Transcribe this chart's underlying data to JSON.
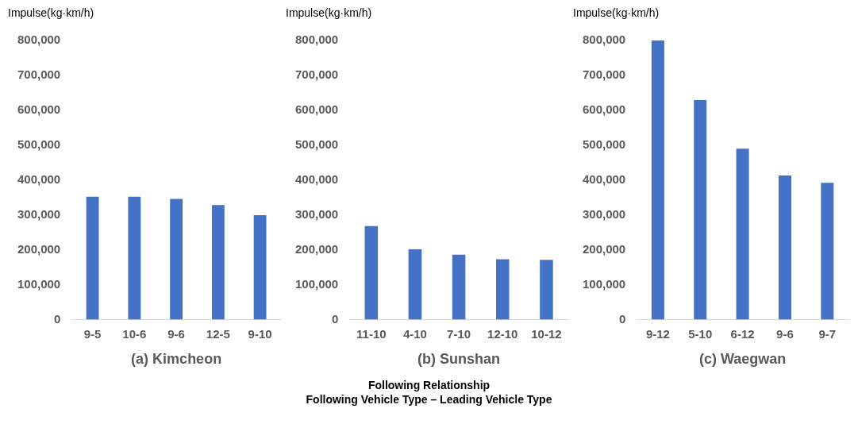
{
  "chart_data": [
    {
      "type": "bar",
      "xlabel": "(a) Kimcheon",
      "ylabel": "Impulse(kg·km/h)",
      "categories": [
        "9-5",
        "10-6",
        "9-6",
        "12-5",
        "9-10"
      ],
      "values": [
        352000,
        352000,
        346000,
        328000,
        299000
      ],
      "color": "#4472c4",
      "ylim": [
        0,
        800000
      ],
      "yticks": [
        {
          "value": 0,
          "label": "0"
        },
        {
          "value": 100000,
          "label": "100,000"
        },
        {
          "value": 200000,
          "label": "200,000"
        },
        {
          "value": 300000,
          "label": "300,000"
        },
        {
          "value": 400000,
          "label": "400,000"
        },
        {
          "value": 500000,
          "label": "500,000"
        },
        {
          "value": 600000,
          "label": "600,000"
        },
        {
          "value": 700000,
          "label": "700,000"
        },
        {
          "value": 800000,
          "label": "800,000"
        }
      ],
      "grid": false,
      "annotations": [
        "Following Relationship",
        "Following Vehicle Type – Leading Vehicle Type"
      ]
    },
    {
      "type": "bar",
      "xlabel": "(b) Sunshan",
      "ylabel": "Impulse(kg·km/h)",
      "categories": [
        "11-10",
        "4-10",
        "7-10",
        "12-10",
        "10-12"
      ],
      "values": [
        268000,
        201000,
        186000,
        173000,
        171000
      ],
      "color": "#4472c4",
      "ylim": [
        0,
        800000
      ],
      "yticks": [
        {
          "value": 0,
          "label": "0"
        },
        {
          "value": 100000,
          "label": "100,000"
        },
        {
          "value": 200000,
          "label": "200,000"
        },
        {
          "value": 300000,
          "label": "300,000"
        },
        {
          "value": 400000,
          "label": "400,000"
        },
        {
          "value": 500000,
          "label": "500,000"
        },
        {
          "value": 600000,
          "label": "600,000"
        },
        {
          "value": 700000,
          "label": "700,000"
        },
        {
          "value": 800000,
          "label": "800,000"
        }
      ],
      "grid": false
    },
    {
      "type": "bar",
      "xlabel": "(c) Waegwan",
      "ylabel": "Impulse(kg·km/h)",
      "categories": [
        "9-12",
        "5-10",
        "6-12",
        "9-6",
        "9-7"
      ],
      "values": [
        800000,
        629000,
        490000,
        413000,
        392000
      ],
      "color": "#4472c4",
      "ylim": [
        0,
        800000
      ],
      "yticks": [
        {
          "value": 0,
          "label": "0"
        },
        {
          "value": 100000,
          "label": "100,000"
        },
        {
          "value": 200000,
          "label": "200,000"
        },
        {
          "value": 300000,
          "label": "300,000"
        },
        {
          "value": 400000,
          "label": "400,000"
        },
        {
          "value": 500000,
          "label": "500,000"
        },
        {
          "value": 600000,
          "label": "600,000"
        },
        {
          "value": 700000,
          "label": "700,000"
        },
        {
          "value": 800000,
          "label": "800,000"
        }
      ],
      "grid": false
    }
  ]
}
